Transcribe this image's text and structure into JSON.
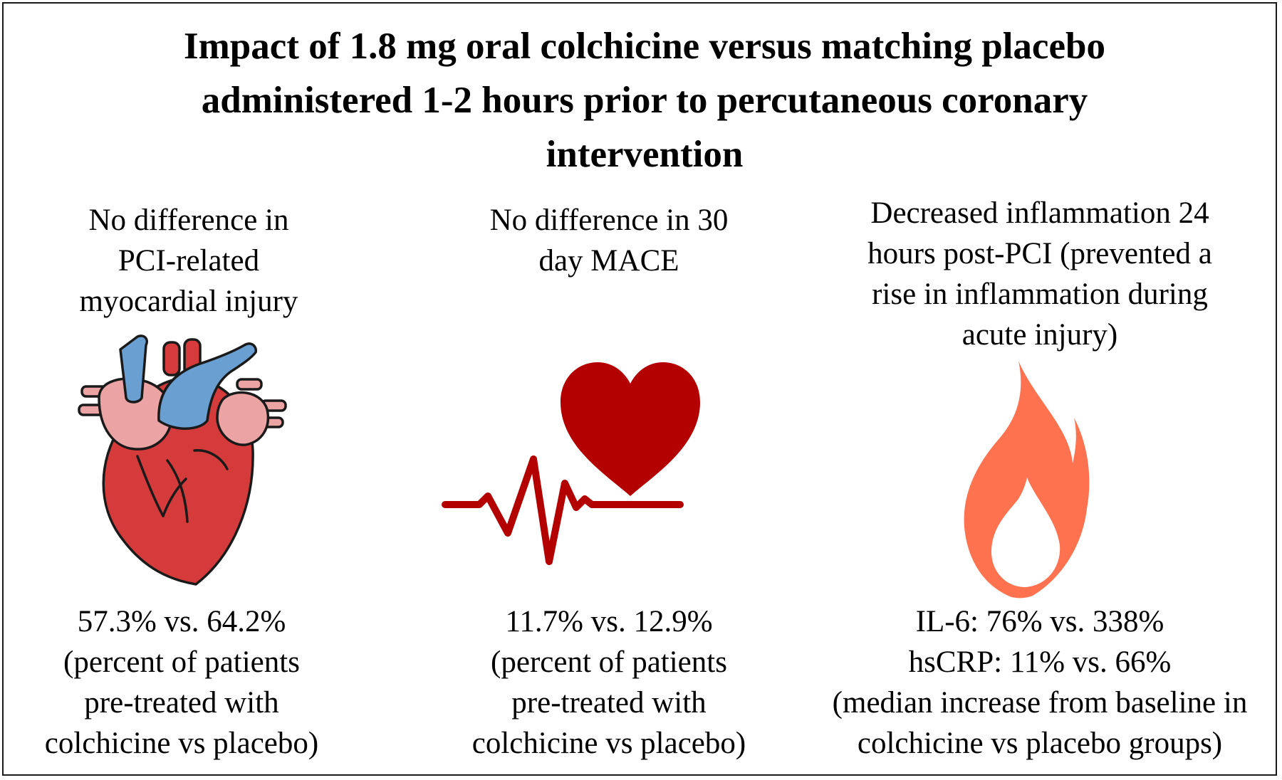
{
  "title": {
    "line1": "Impact of 1.8 mg oral colchicine versus matching placebo",
    "line2": "administered 1-2 hours prior to percutaneous coronary",
    "line3": "intervention"
  },
  "columns": [
    {
      "heading": [
        "No difference in",
        "PCI-related",
        "myocardial injury"
      ],
      "icon": "anatomical-heart-icon",
      "stat": "57.3% vs. 64.2%",
      "note": [
        "(percent of patients",
        "pre-treated with",
        "colchicine vs placebo)"
      ]
    },
    {
      "heading": [
        "No difference in 30",
        "day MACE"
      ],
      "icon": "heart-pulse-icon",
      "stat": "11.7% vs. 12.9%",
      "note": [
        "(percent of patients",
        "pre-treated with",
        "colchicine vs placebo)"
      ]
    },
    {
      "heading": [
        "Decreased inflammation 24",
        "hours post-PCI (prevented a",
        "rise in inflammation during",
        "acute injury)"
      ],
      "icon": "flame-icon",
      "stat_il6": "IL-6: 76% vs. 338%",
      "stat_hscrp": "hsCRP: 11% vs. 66%",
      "note": [
        "(median increase from baseline in",
        "colchicine vs placebo groups)"
      ]
    }
  ],
  "colors": {
    "heart_red": "#d63b3b",
    "vessel_blue": "#6a9fd2",
    "atrium_pink": "#eba3a3",
    "pulse_red": "#b30000",
    "flame_orange": "#fe7250"
  }
}
